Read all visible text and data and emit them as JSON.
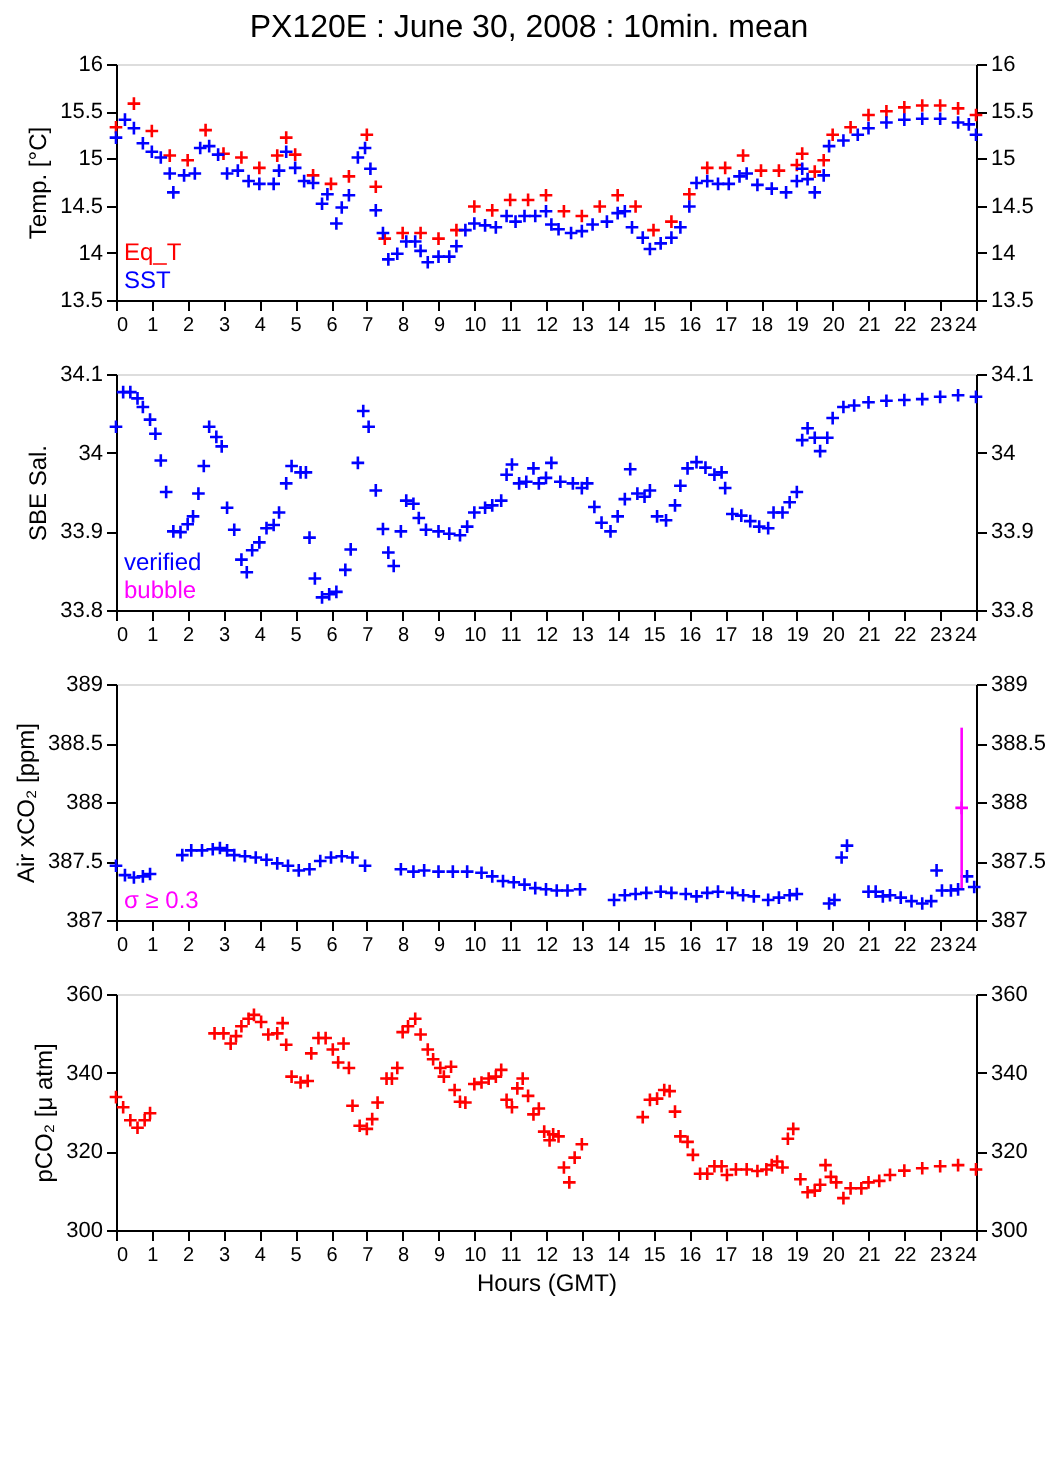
{
  "chart_data": [
    {
      "type": "scatter",
      "title": "PX120E : June 30, 2008 : 10min. mean",
      "ylabel": "Temp. [°C]",
      "xlim": [
        0,
        24
      ],
      "xticks": [
        0,
        1,
        2,
        3,
        4,
        5,
        6,
        7,
        8,
        9,
        10,
        11,
        12,
        13,
        14,
        15,
        16,
        17,
        18,
        19,
        20,
        21,
        22,
        23,
        24
      ],
      "ylim": [
        13.5,
        16
      ],
      "yticks": [
        13.5,
        14,
        14.5,
        15,
        15.5,
        16
      ],
      "y2lim": [
        13.5,
        16
      ],
      "y2ticks": [
        13.5,
        14,
        14.5,
        15,
        15.5,
        16
      ],
      "grid": false,
      "legend": "bottom left",
      "marker": "cross",
      "series": [
        {
          "name": "Eq_T",
          "color": "#ff0000",
          "x": [
            0,
            0.5,
            1,
            1.5,
            2,
            2.5,
            3,
            3.5,
            4,
            4.5,
            4.75,
            5,
            5.5,
            6,
            6.5,
            7,
            7.25,
            7.5,
            8,
            8.5,
            9,
            9.5,
            10,
            10.5,
            11,
            11.5,
            12,
            12.5,
            13,
            13.5,
            14,
            14.5,
            15,
            15.5,
            16,
            16.5,
            17,
            17.5,
            18,
            18.5,
            19,
            19.15,
            19.5,
            19.75,
            20,
            20.5,
            21,
            21.5,
            22,
            22.5,
            23,
            23.5,
            24
          ],
          "values": [
            15.33,
            15.58,
            15.29,
            15.03,
            14.98,
            15.3,
            15.05,
            15.01,
            14.9,
            15.03,
            15.22,
            15.04,
            14.82,
            14.73,
            14.81,
            15.25,
            14.7,
            14.15,
            14.21,
            14.21,
            14.15,
            14.24,
            14.49,
            14.45,
            14.56,
            14.56,
            14.61,
            14.44,
            14.39,
            14.49,
            14.61,
            14.49,
            14.24,
            14.33,
            14.62,
            14.9,
            14.9,
            15.03,
            14.87,
            14.87,
            14.93,
            15.05,
            14.86,
            14.98,
            15.25,
            15.33,
            15.46,
            15.5,
            15.54,
            15.56,
            15.56,
            15.53,
            15.46
          ]
        },
        {
          "name": "SST",
          "color": "#0000ff",
          "x": [
            0,
            0.25,
            0.5,
            0.75,
            1,
            1.25,
            1.5,
            1.6,
            1.9,
            2.2,
            2.35,
            2.6,
            2.85,
            3.1,
            3.4,
            3.7,
            4,
            4.4,
            4.55,
            4.75,
            5,
            5.25,
            5.5,
            5.75,
            5.9,
            6.15,
            6.3,
            6.5,
            6.75,
            6.95,
            7.1,
            7.25,
            7.45,
            7.6,
            7.85,
            8.1,
            8.35,
            8.5,
            8.7,
            9,
            9.3,
            9.5,
            9.75,
            10,
            10.3,
            10.6,
            10.9,
            11.15,
            11.4,
            11.7,
            12,
            12.15,
            12.35,
            12.7,
            13,
            13.3,
            13.7,
            14,
            14.2,
            14.4,
            14.7,
            14.9,
            15.2,
            15.5,
            15.75,
            16,
            16.2,
            16.5,
            16.8,
            17.1,
            17.4,
            17.6,
            17.9,
            18.3,
            18.7,
            19,
            19.15,
            19.3,
            19.5,
            19.75,
            19.9,
            20.3,
            20.7,
            21,
            21.5,
            22,
            22.5,
            23,
            23.5,
            23.8,
            24
          ],
          "values": [
            15.22,
            15.41,
            15.32,
            15.16,
            15.07,
            15.01,
            14.84,
            14.64,
            14.82,
            14.84,
            15.11,
            15.13,
            15.04,
            14.84,
            14.87,
            14.76,
            14.73,
            14.73,
            14.87,
            15.07,
            14.9,
            14.76,
            14.74,
            14.52,
            14.62,
            14.31,
            14.48,
            14.61,
            15.01,
            15.11,
            14.89,
            14.45,
            14.21,
            13.93,
            13.99,
            14.12,
            14.12,
            14.02,
            13.9,
            13.96,
            13.96,
            14.07,
            14.24,
            14.31,
            14.29,
            14.27,
            14.39,
            14.33,
            14.39,
            14.39,
            14.44,
            14.3,
            14.25,
            14.21,
            14.23,
            14.3,
            14.33,
            14.42,
            14.44,
            14.27,
            14.16,
            14.04,
            14.1,
            14.16,
            14.27,
            14.49,
            14.74,
            14.76,
            14.73,
            14.73,
            14.81,
            14.84,
            14.72,
            14.68,
            14.64,
            14.76,
            14.89,
            14.78,
            14.64,
            14.82,
            15.13,
            15.19,
            15.25,
            15.32,
            15.38,
            15.41,
            15.42,
            15.42,
            15.38,
            15.36,
            15.25
          ]
        }
      ]
    },
    {
      "type": "scatter",
      "ylabel": "SBE Sal.",
      "xlim": [
        0,
        24
      ],
      "xticks": [
        0,
        1,
        2,
        3,
        4,
        5,
        6,
        7,
        8,
        9,
        10,
        11,
        12,
        13,
        14,
        15,
        16,
        17,
        18,
        19,
        20,
        21,
        22,
        23,
        24
      ],
      "ylim": [
        33.8,
        34.1
      ],
      "yticks": [
        33.8,
        33.9,
        34,
        34.1
      ],
      "y2lim": [
        33.8,
        34.1
      ],
      "y2ticks": [
        33.8,
        33.9,
        34,
        34.1
      ],
      "grid": false,
      "legend": "bottom left",
      "marker": "cross",
      "series": [
        {
          "name": "verified",
          "color": "#0000ff",
          "x": [
            0,
            0.2,
            0.4,
            0.6,
            0.75,
            0.95,
            1.1,
            1.25,
            1.4,
            1.6,
            1.8,
            2,
            2.15,
            2.3,
            2.45,
            2.6,
            2.8,
            2.95,
            3.1,
            3.3,
            3.5,
            3.65,
            3.8,
            4,
            4.2,
            4.4,
            4.55,
            4.75,
            4.9,
            5.15,
            5.3,
            5.4,
            5.55,
            5.75,
            5.95,
            6.15,
            6.4,
            6.55,
            6.75,
            6.9,
            7.05,
            7.25,
            7.45,
            7.6,
            7.75,
            7.95,
            8.1,
            8.3,
            8.45,
            8.65,
            9,
            9.3,
            9.6,
            9.8,
            10,
            10.3,
            10.5,
            10.75,
            10.9,
            11.05,
            11.25,
            11.45,
            11.65,
            11.8,
            12,
            12.15,
            12.4,
            12.75,
            13,
            13.15,
            13.35,
            13.55,
            13.8,
            14,
            14.2,
            14.35,
            14.55,
            14.75,
            14.9,
            15.1,
            15.35,
            15.6,
            15.75,
            15.95,
            16.2,
            16.45,
            16.7,
            16.9,
            17,
            17.2,
            17.45,
            17.7,
            17.95,
            18.2,
            18.35,
            18.6,
            18.8,
            19,
            19.15,
            19.3,
            19.5,
            19.65,
            19.85,
            20,
            20.3,
            20.6,
            21,
            21.5,
            22,
            22.5,
            23,
            23.5,
            24
          ],
          "values": [
            34.033,
            34.077,
            34.077,
            34.069,
            34.058,
            34.042,
            34.024,
            33.99,
            33.95,
            33.9,
            33.899,
            33.909,
            33.919,
            33.948,
            33.983,
            34.033,
            34.02,
            34.008,
            33.93,
            33.902,
            33.864,
            33.848,
            33.876,
            33.886,
            33.904,
            33.908,
            33.924,
            33.961,
            33.983,
            33.975,
            33.975,
            33.892,
            33.84,
            33.816,
            33.82,
            33.823,
            33.851,
            33.877,
            33.987,
            34.053,
            34.033,
            33.952,
            33.903,
            33.873,
            33.856,
            33.9,
            33.939,
            33.935,
            33.917,
            33.902,
            33.9,
            33.897,
            33.895,
            33.906,
            33.924,
            33.93,
            33.933,
            33.939,
            33.972,
            33.985,
            33.961,
            33.963,
            33.98,
            33.961,
            33.968,
            33.987,
            33.963,
            33.961,
            33.955,
            33.961,
            33.931,
            33.911,
            33.9,
            33.919,
            33.941,
            33.979,
            33.948,
            33.944,
            33.952,
            33.919,
            33.914,
            33.933,
            33.958,
            33.98,
            33.988,
            33.981,
            33.972,
            33.975,
            33.955,
            33.922,
            33.92,
            33.913,
            33.906,
            33.904,
            33.924,
            33.924,
            33.937,
            33.95,
            34.016,
            34.031,
            34.019,
            34.002,
            34.019,
            34.044,
            34.058,
            34.06,
            34.064,
            34.066,
            34.067,
            34.068,
            34.071,
            34.073,
            34.071
          ]
        },
        {
          "name": "bubble",
          "color": "#ff00ff"
        }
      ]
    },
    {
      "type": "scatter",
      "ylabel": "Air xCO₂ [ppm]",
      "xlim": [
        0,
        24
      ],
      "xticks": [
        0,
        1,
        2,
        3,
        4,
        5,
        6,
        7,
        8,
        9,
        10,
        11,
        12,
        13,
        14,
        15,
        16,
        17,
        18,
        19,
        20,
        21,
        22,
        23,
        24
      ],
      "ylim": [
        387,
        389
      ],
      "yticks": [
        387,
        387.5,
        388,
        388.5,
        389
      ],
      "y2lim": [
        387,
        389
      ],
      "y2ticks": [
        387,
        387.5,
        388,
        388.5,
        389
      ],
      "grid": false,
      "legend": "bottom left",
      "marker": "cross",
      "series": [
        {
          "color": "#0000ff",
          "x": [
            0,
            0.25,
            0.5,
            0.75,
            0.95,
            1.85,
            2.1,
            2.4,
            2.7,
            2.9,
            3.1,
            3.3,
            3.6,
            3.9,
            4.2,
            4.5,
            4.8,
            5.1,
            5.4,
            5.7,
            6,
            6.3,
            6.6,
            6.95,
            7.95,
            8.3,
            8.6,
            9,
            9.4,
            9.8,
            10.2,
            10.5,
            10.8,
            11.1,
            11.4,
            11.7,
            12,
            12.3,
            12.6,
            12.95,
            13.9,
            14.2,
            14.5,
            14.8,
            15.2,
            15.5,
            15.9,
            16.2,
            16.5,
            16.8,
            17.2,
            17.5,
            17.8,
            18.2,
            18.5,
            18.8,
            19,
            19.9,
            20.05,
            20.25,
            20.4,
            21,
            21.2,
            21.4,
            21.6,
            21.9,
            22.2,
            22.5,
            22.75,
            22.9,
            23.05,
            23.3,
            23.5,
            23.75,
            23.95
          ],
          "values": [
            387.46,
            387.38,
            387.36,
            387.37,
            387.39,
            387.55,
            387.59,
            387.59,
            387.6,
            387.61,
            387.59,
            387.55,
            387.54,
            387.53,
            387.51,
            387.48,
            387.46,
            387.42,
            387.43,
            387.5,
            387.53,
            387.54,
            387.53,
            387.46,
            387.43,
            387.41,
            387.42,
            387.41,
            387.41,
            387.41,
            387.4,
            387.37,
            387.33,
            387.32,
            387.3,
            387.27,
            387.26,
            387.25,
            387.25,
            387.26,
            387.17,
            387.21,
            387.22,
            387.23,
            387.24,
            387.23,
            387.22,
            387.2,
            387.23,
            387.24,
            387.23,
            387.21,
            387.2,
            387.17,
            387.19,
            387.21,
            387.22,
            387.14,
            387.17,
            387.53,
            387.63,
            387.24,
            387.24,
            387.2,
            387.21,
            387.19,
            387.16,
            387.14,
            387.16,
            387.42,
            387.25,
            387.25,
            387.26,
            387.37,
            387.28
          ]
        },
        {
          "name": "σ ≥ 0.3",
          "color": "#ff00ff",
          "x": [
            23.6
          ],
          "values": [
            387.95
          ],
          "errors": [
            0.68
          ]
        }
      ]
    },
    {
      "type": "scatter",
      "ylabel": "pCO₂ [μ atm]",
      "xlabel": "Hours (GMT)",
      "xlim": [
        0,
        24
      ],
      "xticks": [
        0,
        1,
        2,
        3,
        4,
        5,
        6,
        7,
        8,
        9,
        10,
        11,
        12,
        13,
        14,
        15,
        16,
        17,
        18,
        19,
        20,
        21,
        22,
        23,
        24
      ],
      "ylim": [
        300,
        360
      ],
      "yticks": [
        300,
        320,
        340,
        360
      ],
      "y2lim": [
        300,
        360
      ],
      "y2ticks": [
        300,
        320,
        340,
        360
      ],
      "grid": false,
      "marker": "cross",
      "series": [
        {
          "color": "#ff0000",
          "x": [
            0,
            0.2,
            0.4,
            0.6,
            0.8,
            0.95,
            2.75,
            3,
            3.2,
            3.35,
            3.5,
            3.7,
            3.85,
            4.05,
            4.25,
            4.5,
            4.65,
            4.75,
            4.9,
            5.15,
            5.35,
            5.45,
            5.65,
            5.85,
            6.05,
            6.2,
            6.35,
            6.5,
            6.6,
            6.8,
            7,
            7.15,
            7.3,
            7.55,
            7.7,
            7.85,
            8,
            8.15,
            8.35,
            8.5,
            8.7,
            8.85,
            9.05,
            9.15,
            9.35,
            9.45,
            9.6,
            9.75,
            10,
            10.2,
            10.4,
            10.6,
            10.75,
            10.9,
            11.05,
            11.2,
            11.35,
            11.5,
            11.65,
            11.8,
            11.95,
            12.1,
            12.2,
            12.35,
            12.5,
            12.65,
            12.8,
            13,
            14.7,
            14.9,
            15.1,
            15.3,
            15.45,
            15.6,
            15.75,
            15.95,
            16.1,
            16.3,
            16.5,
            16.7,
            16.9,
            17.05,
            17.3,
            17.6,
            17.9,
            18.15,
            18.3,
            18.45,
            18.6,
            18.75,
            18.9,
            19.1,
            19.3,
            19.5,
            19.65,
            19.8,
            19.95,
            20.1,
            20.3,
            20.5,
            20.8,
            21,
            21.3,
            21.6,
            22,
            22.5,
            23,
            23.5,
            24
          ],
          "values": [
            333.8,
            331.2,
            327.9,
            326.0,
            327.9,
            329.7,
            350.0,
            350.0,
            347.4,
            349.3,
            351.8,
            353.7,
            354.7,
            352.9,
            349.7,
            350.0,
            352.6,
            347.1,
            339.0,
            337.5,
            337.9,
            344.9,
            348.8,
            348.8,
            345.9,
            342.6,
            347.4,
            341.2,
            331.6,
            326.5,
            325.7,
            328.2,
            332.4,
            338.5,
            338.5,
            341.2,
            350.3,
            351.8,
            353.7,
            349.7,
            345.9,
            343.4,
            341.2,
            339.0,
            341.5,
            335.6,
            332.6,
            332.4,
            337.1,
            337.5,
            338.5,
            339.0,
            340.7,
            333.1,
            331.2,
            336.0,
            338.5,
            334.1,
            329.4,
            330.9,
            325.0,
            322.8,
            324.3,
            323.8,
            315.9,
            312.1,
            318.4,
            321.8,
            328.7,
            333.1,
            333.4,
            335.6,
            335.3,
            330.1,
            323.8,
            322.4,
            319.1,
            314.3,
            314.3,
            316.2,
            316.2,
            314.0,
            315.4,
            315.4,
            315.0,
            315.4,
            316.5,
            317.4,
            315.9,
            323.2,
            325.7,
            312.9,
            309.6,
            310.0,
            311.5,
            316.5,
            313.5,
            312.1,
            308.1,
            310.6,
            310.6,
            312.1,
            312.5,
            314.0,
            315.1,
            315.7,
            316.2,
            316.5,
            315.4
          ]
        }
      ]
    }
  ]
}
